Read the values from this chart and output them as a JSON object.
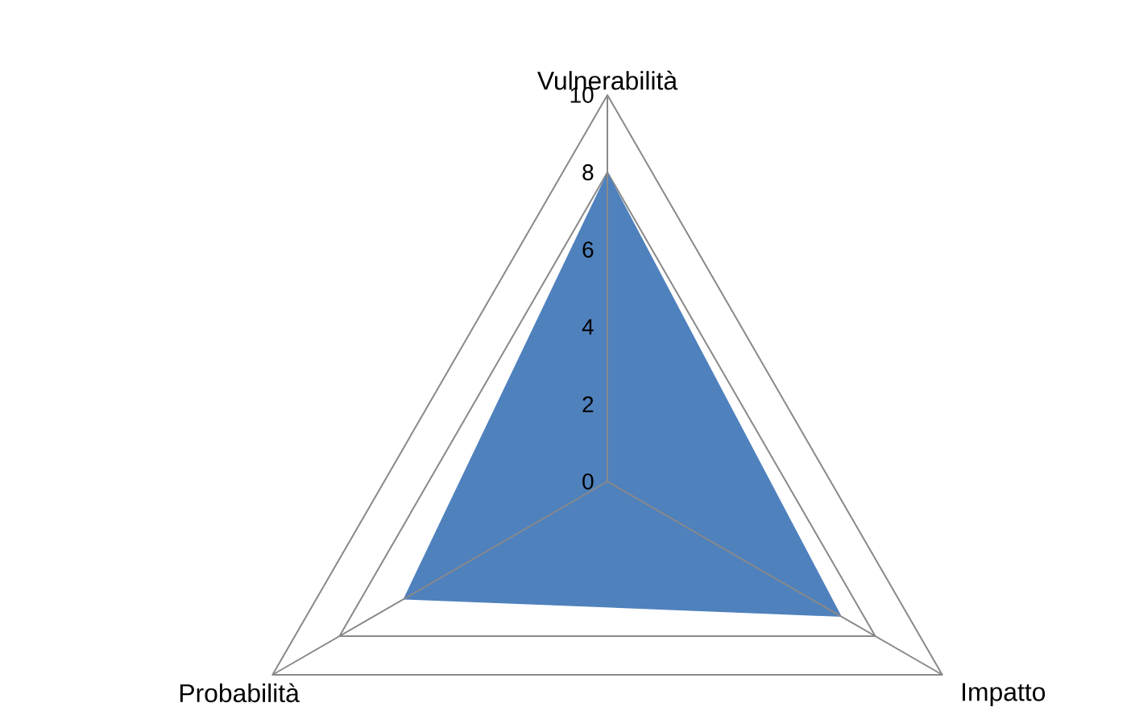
{
  "chart_data": {
    "type": "radar",
    "categories": [
      "Vulnerabilità",
      "Impatto",
      "Probabilità"
    ],
    "series": [
      {
        "type": "area",
        "color": "#4f81bd",
        "values": [
          8,
          7,
          6.1
        ]
      }
    ],
    "ylim": [
      0,
      10
    ],
    "yticks": [
      0,
      2,
      4,
      6,
      8,
      10
    ],
    "grid": true
  }
}
